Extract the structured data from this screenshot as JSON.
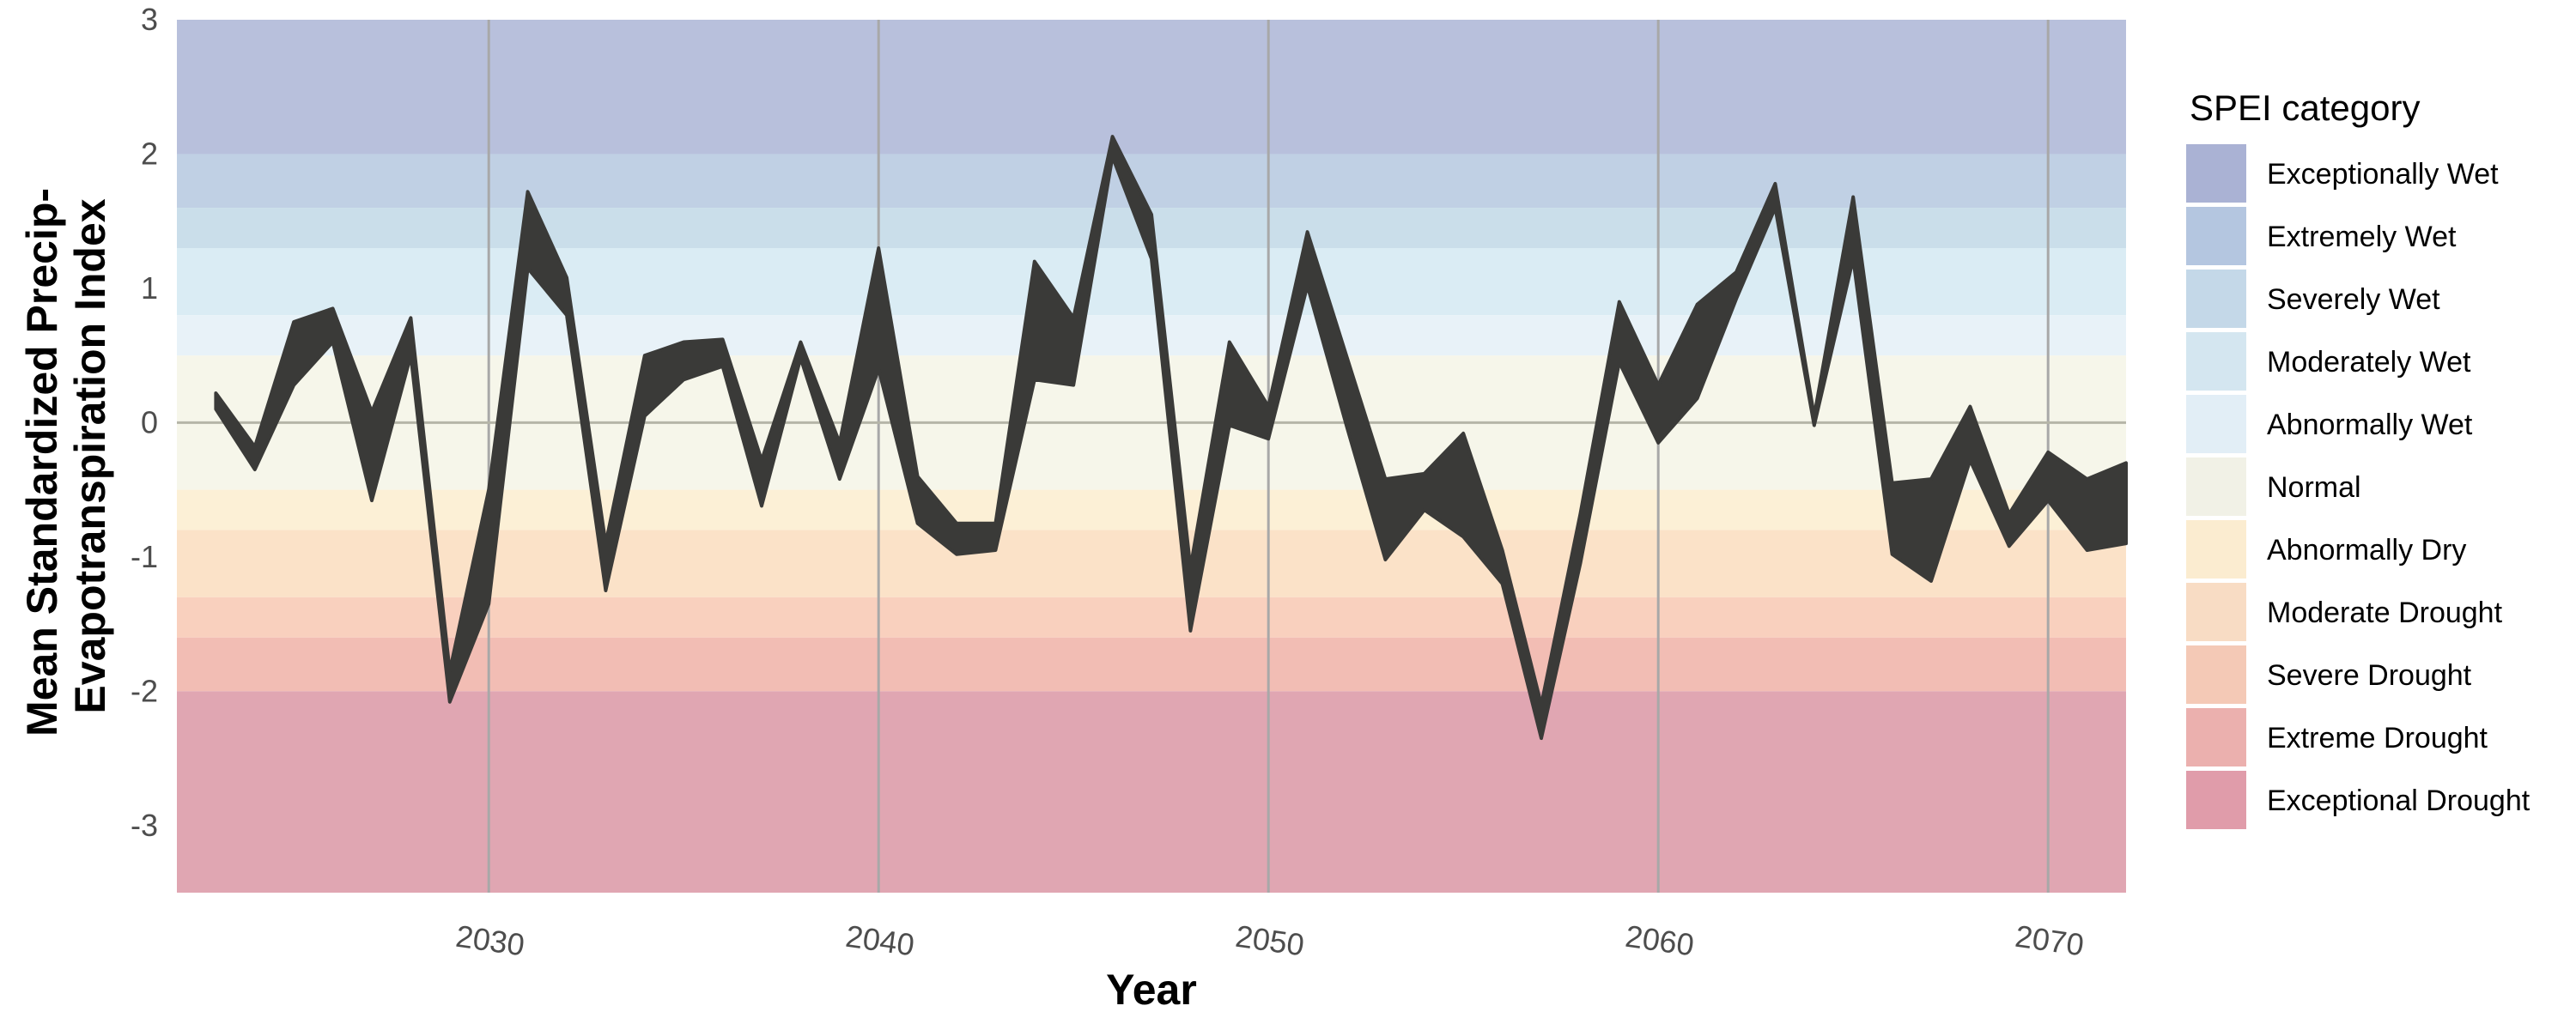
{
  "chart_data": {
    "type": "area",
    "xlabel": "Year",
    "ylabel": "Mean Standardized Precip-Evapotranspiration Index",
    "ylabel_lines": [
      "Mean Standardized Precip-",
      "Evapotranspiration Index"
    ],
    "xlim": [
      2022,
      2072
    ],
    "ylim": [
      -3.5,
      3
    ],
    "xticks": [
      2030,
      2040,
      2050,
      2060,
      2070
    ],
    "yticks": [
      -3,
      -2,
      -1,
      0,
      1,
      2,
      3
    ],
    "grid": true,
    "legend": {
      "title": "SPEI category",
      "position": "right",
      "entries": [
        {
          "label": "Exceptionally Wet",
          "color": "#aab2d4"
        },
        {
          "label": "Extremely Wet",
          "color": "#b4c6e0"
        },
        {
          "label": "Severely Wet",
          "color": "#c4d8e8"
        },
        {
          "label": "Moderately Wet",
          "color": "#d4e6f0"
        },
        {
          "label": "Abnormally Wet",
          "color": "#e2eef6"
        },
        {
          "label": "Normal",
          "color": "#f1f1e6"
        },
        {
          "label": "Abnormally Dry",
          "color": "#fbecd0"
        },
        {
          "label": "Moderate Drought",
          "color": "#f8dcc4"
        },
        {
          "label": "Severe Drought",
          "color": "#f4c9b6"
        },
        {
          "label": "Extreme Drought",
          "color": "#ebb0ae"
        },
        {
          "label": "Exceptional Drought",
          "color": "#e09caa"
        }
      ]
    },
    "bands": [
      {
        "category": "Exceptionally Wet",
        "from": 2,
        "to": 3,
        "color": "#b8c0dc"
      },
      {
        "category": "Extremely Wet",
        "from": 1.6,
        "to": 2,
        "color": "#c0d0e4"
      },
      {
        "category": "Severely Wet",
        "from": 1.3,
        "to": 1.6,
        "color": "#cadeea"
      },
      {
        "category": "Moderately Wet",
        "from": 0.8,
        "to": 1.3,
        "color": "#daecf4"
      },
      {
        "category": "Abnormally Wet",
        "from": 0.5,
        "to": 0.8,
        "color": "#e8f2f8"
      },
      {
        "category": "Normal",
        "from": -0.5,
        "to": 0.5,
        "color": "#f6f6ea"
      },
      {
        "category": "Abnormally Dry",
        "from": -0.8,
        "to": -0.5,
        "color": "#fcf0d6"
      },
      {
        "category": "Moderate Drought",
        "from": -1.3,
        "to": -0.8,
        "color": "#fbe2c8"
      },
      {
        "category": "Severe Drought",
        "from": -1.6,
        "to": -1.3,
        "color": "#f9d0be"
      },
      {
        "category": "Extreme Drought",
        "from": -2,
        "to": -1.6,
        "color": "#f2bdb4"
      },
      {
        "category": "Exceptional Drought",
        "from": -3.5,
        "to": -2,
        "color": "#e0a6b2"
      }
    ],
    "ribbon_color": "#3a3a38",
    "series": [
      {
        "x": [
          2023,
          2024,
          2025,
          2026,
          2027,
          2028,
          2029,
          2030,
          2031,
          2032,
          2033,
          2034,
          2035,
          2036,
          2037,
          2038,
          2039,
          2040,
          2041,
          2042,
          2043,
          2044,
          2045,
          2046,
          2047,
          2048,
          2049,
          2050,
          2051,
          2052,
          2053,
          2054,
          2055,
          2056,
          2057,
          2058,
          2059,
          2060,
          2061,
          2062,
          2063,
          2064,
          2065,
          2066,
          2067,
          2068,
          2069,
          2070,
          2071,
          2072
        ],
        "upper": [
          0.22,
          -0.18,
          0.75,
          0.85,
          0.08,
          0.78,
          -1.85,
          -0.5,
          1.72,
          1.08,
          -0.9,
          0.5,
          0.6,
          0.62,
          -0.28,
          0.6,
          -0.15,
          1.3,
          -0.4,
          -0.75,
          -0.75,
          1.2,
          0.78,
          2.13,
          1.55,
          -1.08,
          0.6,
          0.12,
          1.42,
          0.5,
          -0.42,
          -0.38,
          -0.08,
          -0.95,
          -2.1,
          -0.68,
          0.9,
          0.28,
          0.88,
          1.12,
          1.78,
          0.05,
          1.68,
          -0.45,
          -0.42,
          0.12,
          -0.68,
          -0.22,
          -0.42,
          -0.3
        ],
        "lower": [
          0.1,
          -0.35,
          0.28,
          0.6,
          -0.58,
          0.5,
          -2.08,
          -1.35,
          1.15,
          0.8,
          -1.25,
          0.05,
          0.32,
          0.42,
          -0.62,
          0.48,
          -0.42,
          0.4,
          -0.75,
          -0.98,
          -0.95,
          0.32,
          0.28,
          1.98,
          1.22,
          -1.55,
          -0.02,
          -0.12,
          1.02,
          -0.02,
          -1.02,
          -0.65,
          -0.85,
          -1.2,
          -2.35,
          -1.05,
          0.45,
          -0.15,
          0.18,
          0.92,
          1.6,
          -0.02,
          1.22,
          -0.98,
          -1.18,
          -0.28,
          -0.92,
          -0.58,
          -0.95,
          -0.9
        ]
      }
    ]
  }
}
